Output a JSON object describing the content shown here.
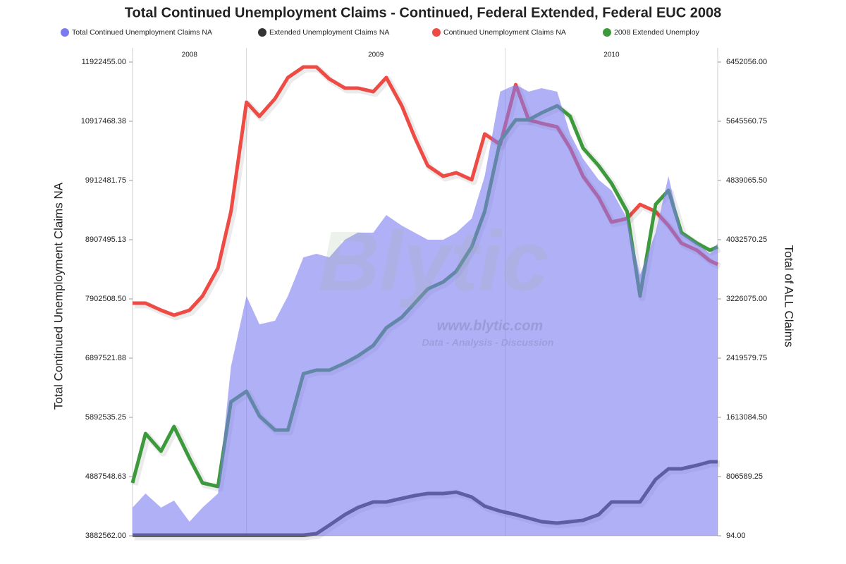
{
  "chart_data": {
    "type": "line",
    "title": "Total Continued Unemployment Claims - Continued, Federal Extended, Federal EUC 2008",
    "ylabel": "Total Continued Unemployment Claims NA",
    "y2label": "Total of ALL Claims",
    "watermark": [
      "Blytic",
      "www.blytic.com",
      "Data - Analysis - Discussion"
    ],
    "xbands": [
      "2008",
      "2009",
      "2010"
    ],
    "xlim": [
      2008.56,
      2010.82
    ],
    "xticks": [
      2009,
      2010
    ],
    "ylim": [
      3882562,
      11922455
    ],
    "yticks": [
      {
        "value": 3882562,
        "label": "3882562.00"
      },
      {
        "value": 4887548.63,
        "label": "4887548.63"
      },
      {
        "value": 5892535.25,
        "label": "5892535.25"
      },
      {
        "value": 6897521.88,
        "label": "6897521.88"
      },
      {
        "value": 7902508.5,
        "label": "7902508.50"
      },
      {
        "value": 8907495.13,
        "label": "8907495.13"
      },
      {
        "value": 9912481.75,
        "label": "9912481.75"
      },
      {
        "value": 10917468.38,
        "label": "10917468.38"
      },
      {
        "value": 11922455,
        "label": "11922455.00"
      }
    ],
    "y2lim": [
      94,
      6452056
    ],
    "y2ticks": [
      {
        "value": 94,
        "label": "94.00"
      },
      {
        "value": 806589.25,
        "label": "806589.25"
      },
      {
        "value": 1613084.5,
        "label": "1613084.50"
      },
      {
        "value": 2419579.75,
        "label": "2419579.75"
      },
      {
        "value": 3226075,
        "label": "3226075.00"
      },
      {
        "value": 4032570.25,
        "label": "4032570.25"
      },
      {
        "value": 4839065.5,
        "label": "4839065.50"
      },
      {
        "value": 5645560.75,
        "label": "5645560.75"
      },
      {
        "value": 6452056,
        "label": "6452056.00"
      }
    ],
    "x": [
      2008.56,
      2008.61,
      2008.67,
      2008.72,
      2008.78,
      2008.83,
      2008.89,
      2008.94,
      2009.0,
      2009.05,
      2009.11,
      2009.16,
      2009.22,
      2009.27,
      2009.32,
      2009.38,
      2009.43,
      2009.49,
      2009.54,
      2009.6,
      2009.65,
      2009.7,
      2009.76,
      2009.81,
      2009.87,
      2009.92,
      2009.98,
      2010.04,
      2010.09,
      2010.14,
      2010.2,
      2010.25,
      2010.3,
      2010.36,
      2010.41,
      2010.47,
      2010.52,
      2010.58,
      2010.63,
      2010.68,
      2010.74,
      2010.79,
      2010.82
    ],
    "series": [
      {
        "name": "Total Continued Unemployment Claims NA",
        "color": "#7b7bf0",
        "fill": true,
        "axis": "y2",
        "values": [
          384000,
          576000,
          384000,
          480000,
          192000,
          384000,
          576000,
          2304000,
          3265000,
          2880000,
          2928000,
          3265000,
          3793000,
          3841000,
          3793000,
          4033000,
          4129000,
          4129000,
          4369000,
          4225000,
          4129000,
          4033000,
          4033000,
          4129000,
          4321000,
          4897000,
          6049000,
          6145000,
          6049000,
          6097000,
          6049000,
          5473000,
          5137000,
          4849000,
          4705000,
          4321000,
          3553000,
          4129000,
          4897000,
          4129000,
          3985000,
          3841000,
          3985000
        ]
      },
      {
        "name": "Extended Unemployment Claims NA",
        "color": "#333333",
        "axis": "y2",
        "values": [
          10000,
          10000,
          10000,
          10000,
          10000,
          10000,
          10000,
          10000,
          10000,
          10000,
          10000,
          10000,
          10000,
          29000,
          144000,
          288000,
          384000,
          461000,
          461000,
          509000,
          547000,
          576000,
          576000,
          595000,
          528000,
          403000,
          336000,
          288000,
          240000,
          192000,
          173000,
          192000,
          211000,
          288000,
          461000,
          461000,
          461000,
          768000,
          912000,
          912000,
          960000,
          1008000,
          1008000
        ]
      },
      {
        "name": "Continued Unemployment Claims NA",
        "color": "#ee4b44",
        "values": [
          7831000,
          7831000,
          7711000,
          7627000,
          7711000,
          7950000,
          8429000,
          9386000,
          11241000,
          11001000,
          11300000,
          11659000,
          11839000,
          11839000,
          11635000,
          11480000,
          11480000,
          11420000,
          11659000,
          11181000,
          10642000,
          10164000,
          9984000,
          10044000,
          9924000,
          10702000,
          10523000,
          11540000,
          10941000,
          10882000,
          10822000,
          10463000,
          9984000,
          9625000,
          9207000,
          9266000,
          9506000,
          9386000,
          9147000,
          8848000,
          8728000,
          8549000,
          8489000
        ]
      },
      {
        "name": "2008 Extended Unemploy",
        "color": "#3c9a3c",
        "axis": "y2",
        "values": [
          720000,
          1392000,
          1152000,
          1488000,
          1056000,
          720000,
          672000,
          1824000,
          1968000,
          1632000,
          1440000,
          1440000,
          2208000,
          2256000,
          2256000,
          2352000,
          2448000,
          2592000,
          2832000,
          2976000,
          3169000,
          3361000,
          3457000,
          3601000,
          3937000,
          4417000,
          5377000,
          5665000,
          5665000,
          5761000,
          5857000,
          5713000,
          5281000,
          5041000,
          4801000,
          4417000,
          3265000,
          4513000,
          4705000,
          4129000,
          3985000,
          3889000,
          3937000
        ]
      }
    ]
  }
}
